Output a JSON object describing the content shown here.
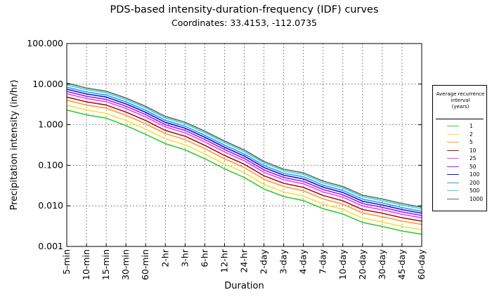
{
  "chart_data": {
    "type": "line",
    "title": "PDS-based intensity-duration-frequency (IDF) curves",
    "subtitle": "Coordinates: 33.4153, -112.0735",
    "xlabel": "Duration",
    "ylabel": "Precipitation intensity (in/hr)",
    "yscale": "log",
    "ylim": [
      0.001,
      100
    ],
    "ytick_labels": [
      "100.000",
      "10.000",
      "1.000",
      "0.100",
      "0.010",
      "0.001"
    ],
    "categories": [
      "5-min",
      "10-min",
      "15-min",
      "30-min",
      "60-min",
      "2-hr",
      "3-hr",
      "6-hr",
      "12-hr",
      "24-hr",
      "2-day",
      "3-day",
      "4-day",
      "7-day",
      "10-day",
      "20-day",
      "30-day",
      "45-day",
      "60-day"
    ],
    "legend": {
      "title_lines": [
        "Average recurrence",
        "interval",
        "(years)"
      ],
      "position": "right"
    },
    "series": [
      {
        "name": "1",
        "color": "#33cc33",
        "values": [
          2.3,
          1.75,
          1.45,
          0.95,
          0.58,
          0.34,
          0.24,
          0.145,
          0.082,
          0.05,
          0.026,
          0.017,
          0.0135,
          0.0085,
          0.0063,
          0.0039,
          0.0031,
          0.0024,
          0.002
        ]
      },
      {
        "name": "2",
        "color": "#ffdd33",
        "values": [
          3.0,
          2.3,
          1.9,
          1.27,
          0.78,
          0.45,
          0.32,
          0.19,
          0.108,
          0.066,
          0.034,
          0.022,
          0.0175,
          0.011,
          0.0082,
          0.005,
          0.004,
          0.0031,
          0.0026
        ]
      },
      {
        "name": "5",
        "color": "#ff9933",
        "values": [
          4.0,
          3.05,
          2.55,
          1.7,
          1.05,
          0.6,
          0.43,
          0.255,
          0.145,
          0.088,
          0.045,
          0.03,
          0.0235,
          0.0148,
          0.011,
          0.0067,
          0.0054,
          0.0042,
          0.0035
        ]
      },
      {
        "name": "10",
        "color": "#aa1111",
        "values": [
          4.8,
          3.65,
          3.05,
          2.05,
          1.27,
          0.72,
          0.52,
          0.31,
          0.175,
          0.106,
          0.055,
          0.036,
          0.0285,
          0.018,
          0.0133,
          0.0081,
          0.0066,
          0.0051,
          0.0042
        ]
      },
      {
        "name": "25",
        "color": "#ee44ee",
        "values": [
          5.8,
          4.4,
          3.7,
          2.5,
          1.55,
          0.88,
          0.63,
          0.375,
          0.213,
          0.129,
          0.067,
          0.044,
          0.035,
          0.022,
          0.0163,
          0.0099,
          0.008,
          0.0062,
          0.0051
        ]
      },
      {
        "name": "50",
        "color": "#9922ee",
        "values": [
          6.6,
          5.0,
          4.2,
          2.85,
          1.77,
          1.0,
          0.72,
          0.43,
          0.245,
          0.148,
          0.077,
          0.05,
          0.04,
          0.0252,
          0.0187,
          0.0114,
          0.0092,
          0.0071,
          0.0058
        ]
      },
      {
        "name": "100",
        "color": "#1111cc",
        "values": [
          7.5,
          5.7,
          4.8,
          3.25,
          2.02,
          1.14,
          0.82,
          0.49,
          0.28,
          0.169,
          0.088,
          0.057,
          0.046,
          0.0288,
          0.0213,
          0.013,
          0.0105,
          0.0081,
          0.0066
        ]
      },
      {
        "name": "200",
        "color": "#3399ee",
        "values": [
          8.4,
          6.4,
          5.4,
          3.65,
          2.27,
          1.28,
          0.92,
          0.55,
          0.315,
          0.19,
          0.099,
          0.064,
          0.052,
          0.0324,
          0.024,
          0.0146,
          0.0118,
          0.0091,
          0.0074
        ]
      },
      {
        "name": "500",
        "color": "#33dddd",
        "values": [
          9.6,
          7.3,
          6.1,
          4.15,
          2.58,
          1.46,
          1.05,
          0.63,
          0.36,
          0.217,
          0.113,
          0.073,
          0.059,
          0.037,
          0.0274,
          0.0167,
          0.0135,
          0.0104,
          0.0085
        ]
      },
      {
        "name": "1000",
        "color": "#666666",
        "values": [
          10.6,
          8.0,
          6.7,
          4.55,
          2.83,
          1.6,
          1.15,
          0.69,
          0.395,
          0.238,
          0.124,
          0.08,
          0.065,
          0.0406,
          0.03,
          0.0183,
          0.0148,
          0.0114,
          0.0093
        ]
      }
    ]
  }
}
